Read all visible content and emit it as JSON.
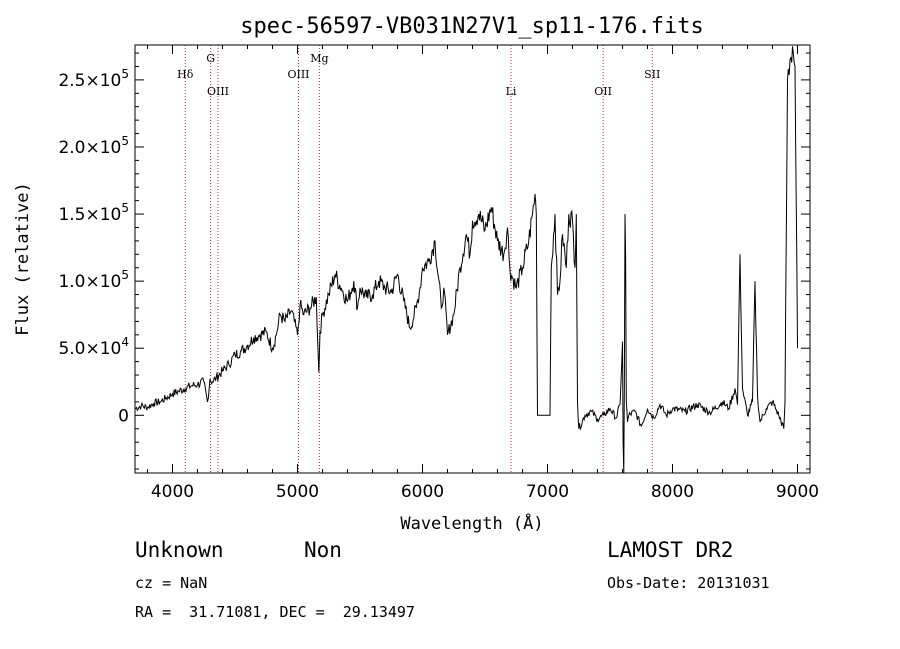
{
  "chart_data": {
    "type": "line",
    "title": "spec-56597-VB031N27V1_sp11-176.fits",
    "xlabel": "Wavelength (Å)",
    "ylabel": "Flux (relative)",
    "xlim": [
      3700,
      9100
    ],
    "ylim": [
      -43000,
      276000
    ],
    "x_ticks": [
      {
        "value": 4000,
        "label": "4000"
      },
      {
        "value": 5000,
        "label": "5000"
      },
      {
        "value": 6000,
        "label": "6000"
      },
      {
        "value": 7000,
        "label": "7000"
      },
      {
        "value": 8000,
        "label": "8000"
      },
      {
        "value": 9000,
        "label": "9000"
      }
    ],
    "y_ticks": [
      {
        "value": 0,
        "mant": "0",
        "exp": ""
      },
      {
        "value": 50000,
        "mant": "5.0×10",
        "exp": "4"
      },
      {
        "value": 100000,
        "mant": "1.0×10",
        "exp": "5"
      },
      {
        "value": 150000,
        "mant": "1.5×10",
        "exp": "5"
      },
      {
        "value": 200000,
        "mant": "2.0×10",
        "exp": "5"
      },
      {
        "value": 250000,
        "mant": "2.5×10",
        "exp": "5"
      }
    ],
    "series": [
      {
        "name": "flux",
        "color": "#000000",
        "x": [
          3700,
          3750,
          3800,
          3850,
          3900,
          3950,
          4000,
          4050,
          4100,
          4150,
          4200,
          4250,
          4280,
          4300,
          4320,
          4350,
          4400,
          4450,
          4500,
          4550,
          4600,
          4650,
          4700,
          4750,
          4800,
          4830,
          4860,
          4900,
          4950,
          5000,
          5020,
          5050,
          5100,
          5150,
          5170,
          5180,
          5200,
          5250,
          5300,
          5350,
          5400,
          5450,
          5480,
          5500,
          5550,
          5600,
          5650,
          5700,
          5750,
          5800,
          5850,
          5900,
          5950,
          5980,
          6000,
          6050,
          6100,
          6150,
          6170,
          6200,
          6250,
          6300,
          6350,
          6380,
          6400,
          6450,
          6500,
          6550,
          6600,
          6650,
          6680,
          6700,
          6750,
          6800,
          6850,
          6880,
          6900,
          6910,
          6920,
          7020,
          7030,
          7060,
          7080,
          7100,
          7120,
          7150,
          7170,
          7200,
          7220,
          7230,
          7240,
          7250,
          7300,
          7350,
          7400,
          7450,
          7500,
          7550,
          7580,
          7600,
          7605,
          7610,
          7615,
          7620,
          7625,
          7630,
          7640,
          7650,
          7700,
          7750,
          7800,
          7850,
          7900,
          7950,
          8000,
          8100,
          8200,
          8300,
          8400,
          8450,
          8500,
          8520,
          8540,
          8560,
          8600,
          8640,
          8660,
          8680,
          8700,
          8750,
          8800,
          8850,
          8890,
          8900,
          8920,
          8940,
          8960,
          8980,
          9000
        ],
        "y": [
          5000,
          7000,
          6000,
          9000,
          10000,
          13000,
          16000,
          18000,
          20000,
          22000,
          23000,
          25000,
          10000,
          27000,
          25000,
          28000,
          33000,
          38000,
          45000,
          48000,
          52000,
          58000,
          60000,
          62000,
          50000,
          60000,
          75000,
          70000,
          78000,
          60000,
          82000,
          75000,
          80000,
          88000,
          32000,
          62000,
          75000,
          90000,
          105000,
          95000,
          85000,
          100000,
          80000,
          95000,
          88000,
          90000,
          100000,
          95000,
          92000,
          105000,
          85000,
          65000,
          80000,
          95000,
          110000,
          115000,
          130000,
          80000,
          95000,
          60000,
          75000,
          110000,
          135000,
          120000,
          145000,
          150000,
          138000,
          155000,
          130000,
          120000,
          140000,
          108000,
          95000,
          110000,
          130000,
          150000,
          165000,
          150000,
          0,
          0,
          110000,
          150000,
          90000,
          100000,
          135000,
          110000,
          150000,
          145000,
          110000,
          150000,
          10000,
          -10000,
          0,
          3000,
          -3000,
          0,
          5000,
          -2000,
          8000,
          55000,
          -20000,
          -43000,
          30000,
          150000,
          120000,
          10000,
          -5000,
          0,
          3000,
          -8000,
          5000,
          -2000,
          8000,
          0,
          5000,
          3000,
          8000,
          2000,
          10000,
          5000,
          20000,
          8000,
          120000,
          20000,
          0,
          10000,
          100000,
          15000,
          -5000,
          5000,
          10000,
          0,
          -10000,
          10000,
          250000,
          265000,
          275000,
          260000,
          50000
        ]
      }
    ],
    "emission_lines": [
      {
        "label": "Hδ",
        "x": 4102,
        "pos": "upper"
      },
      {
        "label": "G",
        "x": 4305,
        "pos": "top"
      },
      {
        "label": "OIII",
        "x": 4364,
        "pos": "lower"
      },
      {
        "label": "OIII",
        "x": 5008,
        "pos": "upper"
      },
      {
        "label": "Mg",
        "x": 5175,
        "pos": "top"
      },
      {
        "label": "Li",
        "x": 6708,
        "pos": "lower"
      },
      {
        "label": "OII",
        "x": 7445,
        "pos": "lower"
      },
      {
        "label": "SII",
        "x": 7838,
        "pos": "upper"
      }
    ],
    "line_color": "#b03030",
    "grid": false,
    "legend": "none"
  },
  "info": {
    "object_class": "Unknown",
    "subclass": "Non",
    "survey": "LAMOST DR2",
    "cz": "cz = NaN",
    "obs_date": "Obs-Date: 20131031",
    "coords": "RA =  31.71081, DEC =  29.13497"
  }
}
